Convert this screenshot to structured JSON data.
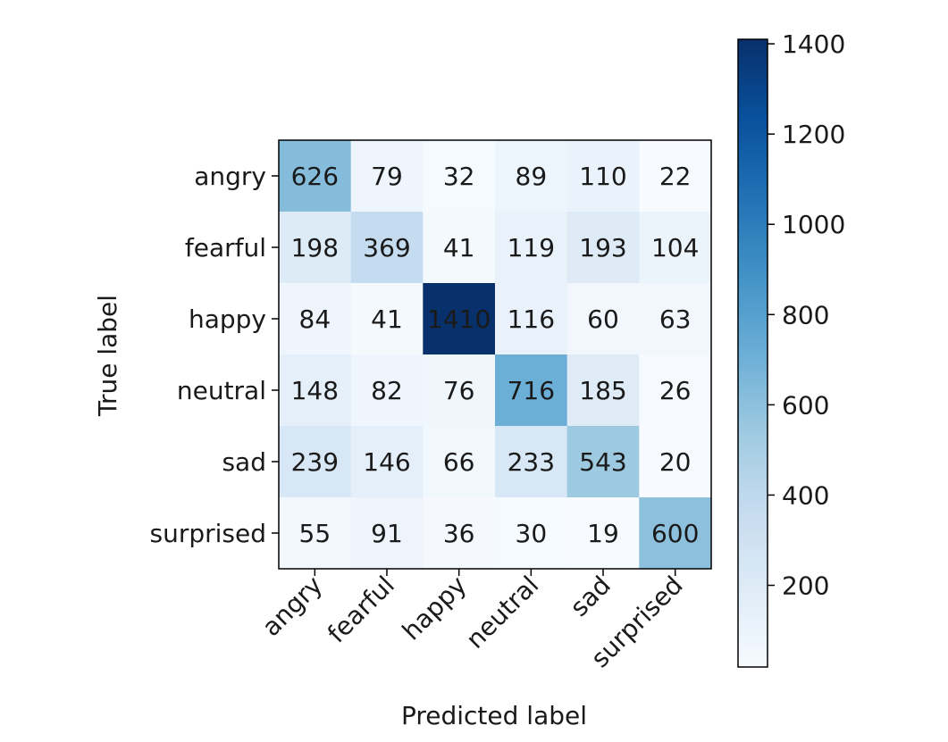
{
  "chart_data": {
    "type": "heatmap",
    "title": "",
    "xlabel": "Predicted label",
    "ylabel": "True label",
    "row_labels": [
      "angry",
      "fearful",
      "happy",
      "neutral",
      "sad",
      "surprised"
    ],
    "col_labels": [
      "angry",
      "fearful",
      "happy",
      "neutral",
      "sad",
      "surprised"
    ],
    "values": [
      [
        626,
        79,
        32,
        89,
        110,
        22
      ],
      [
        198,
        369,
        41,
        119,
        193,
        104
      ],
      [
        84,
        41,
        1410,
        116,
        60,
        63
      ],
      [
        148,
        82,
        76,
        716,
        185,
        26
      ],
      [
        239,
        146,
        66,
        233,
        543,
        20
      ],
      [
        55,
        91,
        36,
        30,
        19,
        600
      ]
    ],
    "colormap": "Blues",
    "color_low": "#f7fbff",
    "color_high": "#08306b",
    "colorbar": {
      "range": [
        19,
        1410
      ],
      "ticks": [
        200,
        400,
        600,
        800,
        1000,
        1200,
        1400
      ]
    },
    "grid": false
  }
}
